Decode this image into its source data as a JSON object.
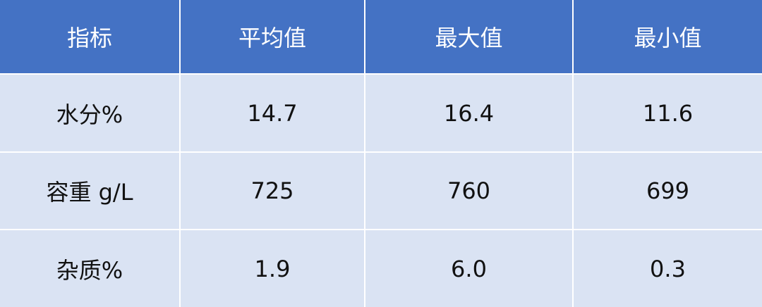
{
  "table": {
    "headers": [
      "指标",
      "平均值",
      "最大值",
      "最小值"
    ],
    "rows": [
      [
        "水分%",
        "14.7",
        "16.4",
        "11.6"
      ],
      [
        "容重 g/L",
        "725",
        "760",
        "699"
      ],
      [
        "杂质%",
        "1.9",
        "6.0",
        "0.3"
      ]
    ]
  },
  "colors": {
    "header_bg": "#4472C4",
    "row_bg": "#DAE3F3",
    "header_text": "#FFFFFF"
  }
}
